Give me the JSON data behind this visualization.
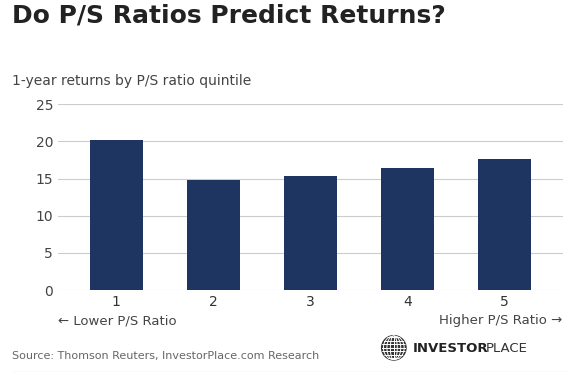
{
  "title": "Do P/S Ratios Predict Returns?",
  "subtitle": "1-year returns by P/S ratio quintile",
  "categories": [
    "1",
    "2",
    "3",
    "4",
    "5"
  ],
  "values": [
    20.2,
    14.8,
    15.4,
    16.4,
    17.6
  ],
  "bar_color": "#1e3461",
  "ylim": [
    0,
    25
  ],
  "yticks": [
    0,
    5,
    10,
    15,
    20,
    25
  ],
  "xlabel_left": "← Lower P/S Ratio",
  "xlabel_right": "Higher P/S Ratio →",
  "source_text": "Source: Thomson Reuters, InvestorPlace.com Research",
  "background_color": "#ffffff",
  "grid_color": "#cccccc",
  "title_fontsize": 18,
  "subtitle_fontsize": 10,
  "tick_fontsize": 10,
  "source_fontsize": 8,
  "xlabel_fontsize": 9.5,
  "logo_bold": "INVESTOR",
  "logo_light": "PLACE"
}
